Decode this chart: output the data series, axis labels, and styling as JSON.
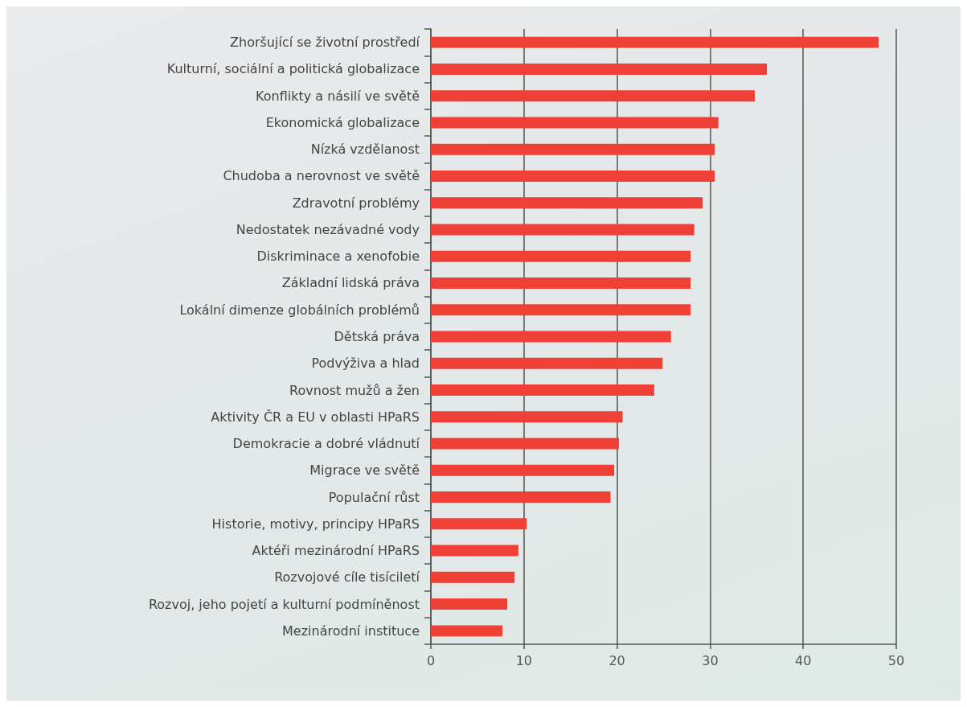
{
  "chart_data": {
    "type": "bar",
    "orientation": "horizontal",
    "categories": [
      "Zhoršující se životní prostředí",
      "Kulturní, sociální a politická globalizace",
      "Konflikty a násilí ve světě",
      "Ekonomická globalizace",
      "Nízká vzdělanost",
      "Chudoba a nerovnost ve světě",
      "Zdravotní problémy",
      "Nedostatek nezávadné vody",
      "Diskriminace a xenofobie",
      "Základní lidská práva",
      "Lokální dimenze globálních problémů",
      "Dětská práva",
      "Podvýživa a hlad",
      "Rovnost mužů a žen",
      "Aktivity ČR a EU v oblasti HPaRS",
      "Demokracie a dobré vládnutí",
      "Migrace ve světě",
      "Populační růst",
      "Historie, motivy, principy HPaRS",
      "Aktéři mezinárodní HPaRS",
      "Rozvojové cíle tisíciletí",
      "Rozvoj, jeho pojetí a kulturní podmíněnost",
      "Mezinárodní instituce"
    ],
    "values": [
      48.1,
      36.1,
      34.8,
      30.9,
      30.5,
      30.5,
      29.2,
      28.3,
      27.9,
      27.9,
      27.9,
      25.8,
      24.9,
      24.0,
      20.6,
      20.2,
      19.7,
      19.3,
      10.3,
      9.4,
      9.0,
      8.2,
      7.7
    ],
    "color": "#ee4035",
    "xlim": [
      0,
      50
    ],
    "xticks": [
      0,
      10,
      20,
      30,
      40,
      50
    ],
    "grid": "x"
  }
}
